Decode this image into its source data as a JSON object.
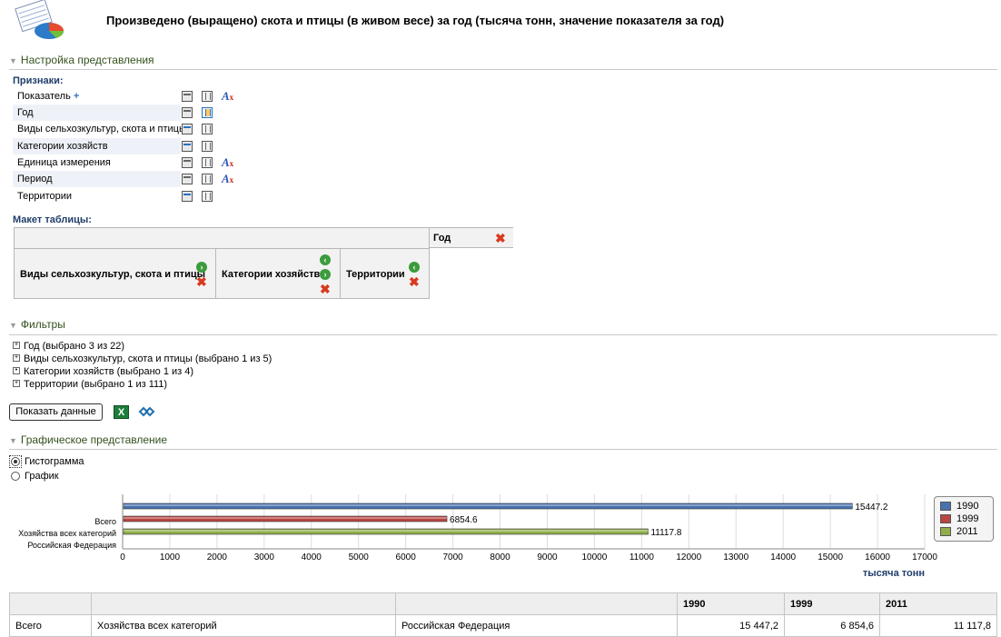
{
  "page": {
    "title": "Произведено (выращено) скота и птицы (в живом весе) за год (тысяча тонн, значение показателя за год)"
  },
  "sections": {
    "settings": "Настройка представления",
    "filters": "Фильтры",
    "graphic": "Графическое представление"
  },
  "features": {
    "heading": "Признаки:",
    "items": [
      {
        "label": "Показатель",
        "plus": "+",
        "font_icon": true
      },
      {
        "label": "Год",
        "font_icon": false
      },
      {
        "label": "Виды сельхозкультур, скота и птицы",
        "font_icon": false
      },
      {
        "label": "Категории хозяйств",
        "font_icon": false
      },
      {
        "label": "Единица измерения",
        "font_icon": true
      },
      {
        "label": "Период",
        "font_icon": true
      },
      {
        "label": "Территории",
        "font_icon": false
      }
    ]
  },
  "layout_table": {
    "heading": "Макет таблицы:",
    "column_header": "Год",
    "row_fields": [
      "Виды сельхозкультур, скота и птицы",
      "Категории хозяйств",
      "Территории"
    ]
  },
  "filters": {
    "items": [
      {
        "box": "+",
        "label": "Год (выбрано 3 из 22)"
      },
      {
        "box": "+",
        "label": "Виды сельхозкультур, скота и птицы (выбрано 1 из 5)"
      },
      {
        "box": "•",
        "label": "Категории хозяйств (выбрано 1 из 4)"
      },
      {
        "box": "+",
        "label": "Территории (выбрано 1 из 111)"
      }
    ]
  },
  "actions": {
    "show_data": "Показать данные",
    "excel_icon": "excel-export-icon",
    "link_icon": "link-icon",
    "excel_glyph": "X"
  },
  "chart_options": {
    "histogram": "Гистограмма",
    "graph": "График",
    "selected": "histogram"
  },
  "chart_data": {
    "type": "bar",
    "orientation": "horizontal",
    "categories": [
      "Всего / Хозяйства всех категорий / Российская Федерация"
    ],
    "category_labels": [
      "Всего",
      "Хозяйства всех категорий",
      "Российская Федерация"
    ],
    "series": [
      {
        "name": "1990",
        "values": [
          15447.2
        ],
        "label": "15447.2",
        "color": "#4a72b0"
      },
      {
        "name": "1999",
        "values": [
          6854.6
        ],
        "label": "6854.6",
        "color": "#b84642"
      },
      {
        "name": "2011",
        "values": [
          11117.8
        ],
        "label": "11117.8",
        "color": "#8fae4a"
      }
    ],
    "xlim": [
      0,
      17000
    ],
    "xticks": [
      0,
      1000,
      2000,
      3000,
      4000,
      5000,
      6000,
      7000,
      8000,
      9000,
      10000,
      11000,
      12000,
      13000,
      14000,
      15000,
      16000,
      17000
    ],
    "xlabel": "тысяча тонн",
    "grid": true,
    "legend": "right"
  },
  "data_table": {
    "headers": [
      "",
      "",
      "",
      "1990",
      "1999",
      "2011"
    ],
    "rows": [
      [
        "Всего",
        "Хозяйства всех категорий",
        "Российская Федерация",
        "15 447,2",
        "6 854,6",
        "11 117,8"
      ]
    ]
  }
}
